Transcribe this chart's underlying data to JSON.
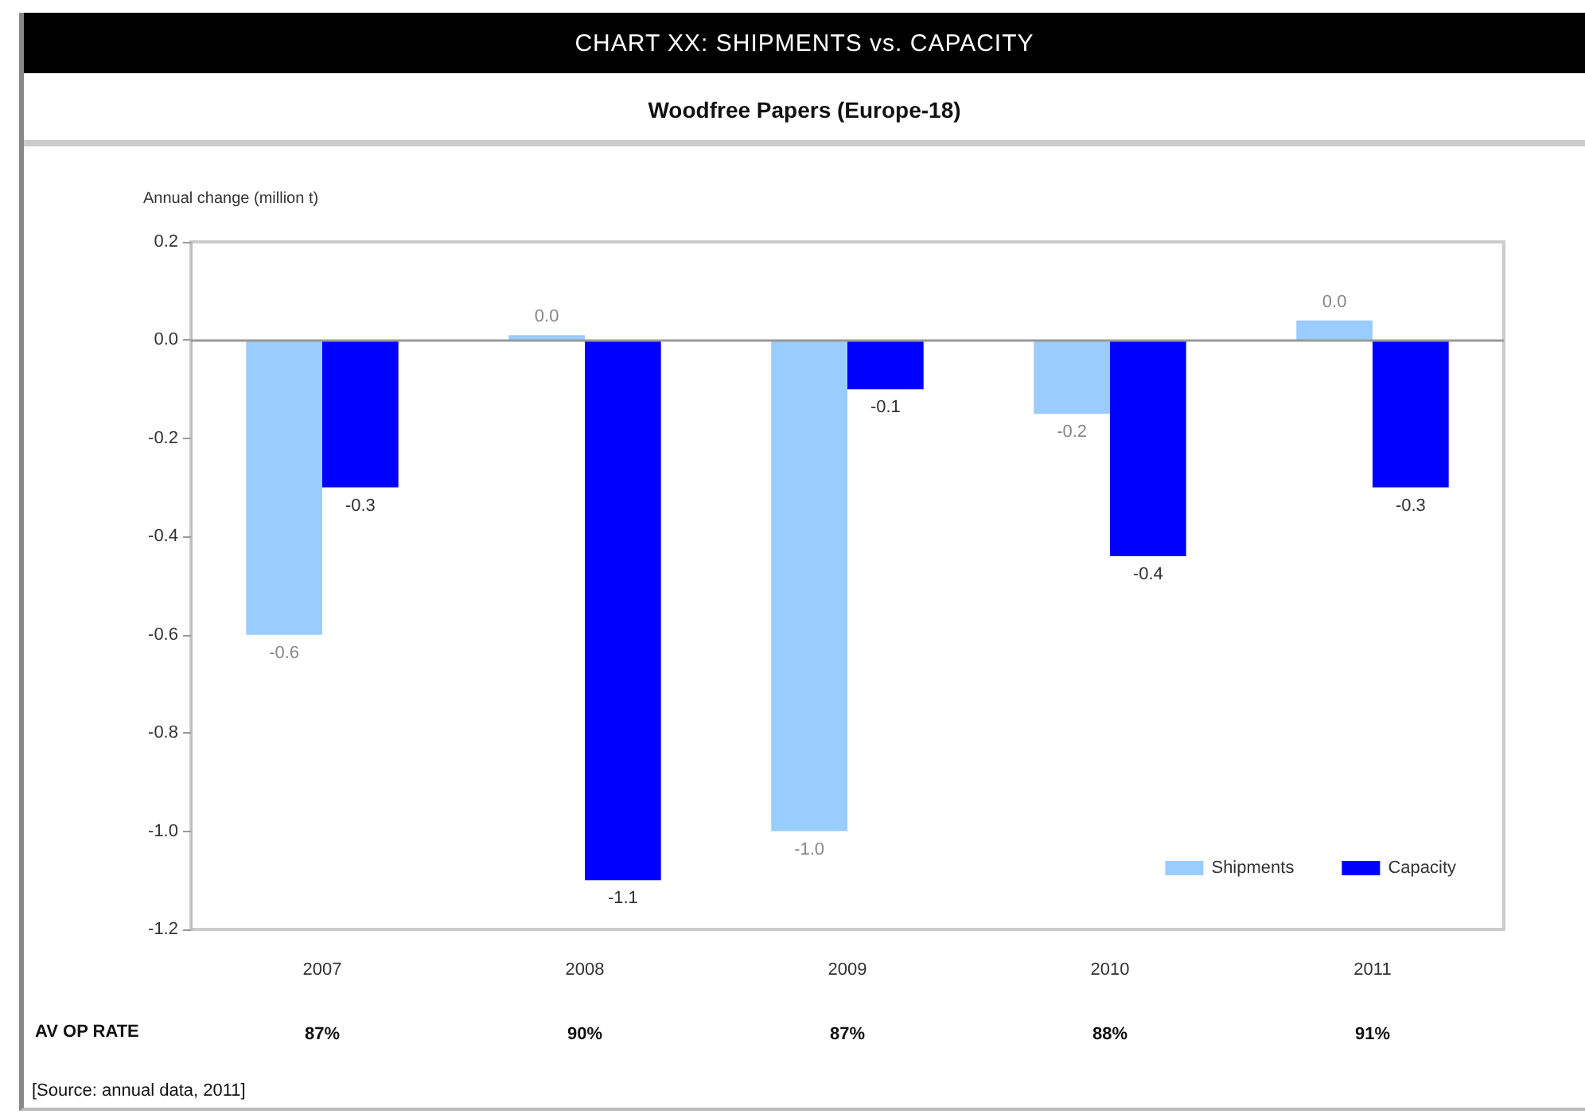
{
  "chart_data": {
    "type": "bar",
    "title": "CHART XX: SHIPMENTS vs. CAPACITY",
    "subtitle": "Woodfree Papers (Europe-18)",
    "ylabel": "Annual change (million t)",
    "categories": [
      "2007",
      "2008",
      "2009",
      "2010",
      "2011"
    ],
    "series": [
      {
        "name": "Shipments",
        "color": "#99ccff",
        "values": [
          -0.6,
          0.01,
          -1.0,
          -0.15,
          0.04
        ],
        "value_labels": [
          "-0.6",
          "0.0",
          "-1.0",
          "-0.2",
          "0.0"
        ]
      },
      {
        "name": "Capacity",
        "color": "#0000ff",
        "values": [
          -0.3,
          -1.1,
          -0.1,
          -0.44,
          -0.3
        ],
        "value_labels": [
          "-0.3",
          "-1.1",
          "-0.1",
          "-0.4",
          "-0.3"
        ]
      }
    ],
    "ylim": [
      -1.2,
      0.2
    ],
    "yticks": [
      0.2,
      {
        "value": 0,
        "label": "0.0"
      },
      -0.2,
      -0.4,
      -0.6,
      -0.8,
      {
        "value": -1,
        "label": "-1.0"
      },
      -1.2
    ],
    "grid": false,
    "legend": "bottom right",
    "ref_lines": [
      {
        "axis": "y",
        "value": 0,
        "color": "#999999"
      }
    ],
    "annotations": [
      "AV OP RATE",
      "87%",
      "90%",
      "87%",
      "88%",
      "91%",
      "[Source: annual data, 2011]"
    ]
  }
}
